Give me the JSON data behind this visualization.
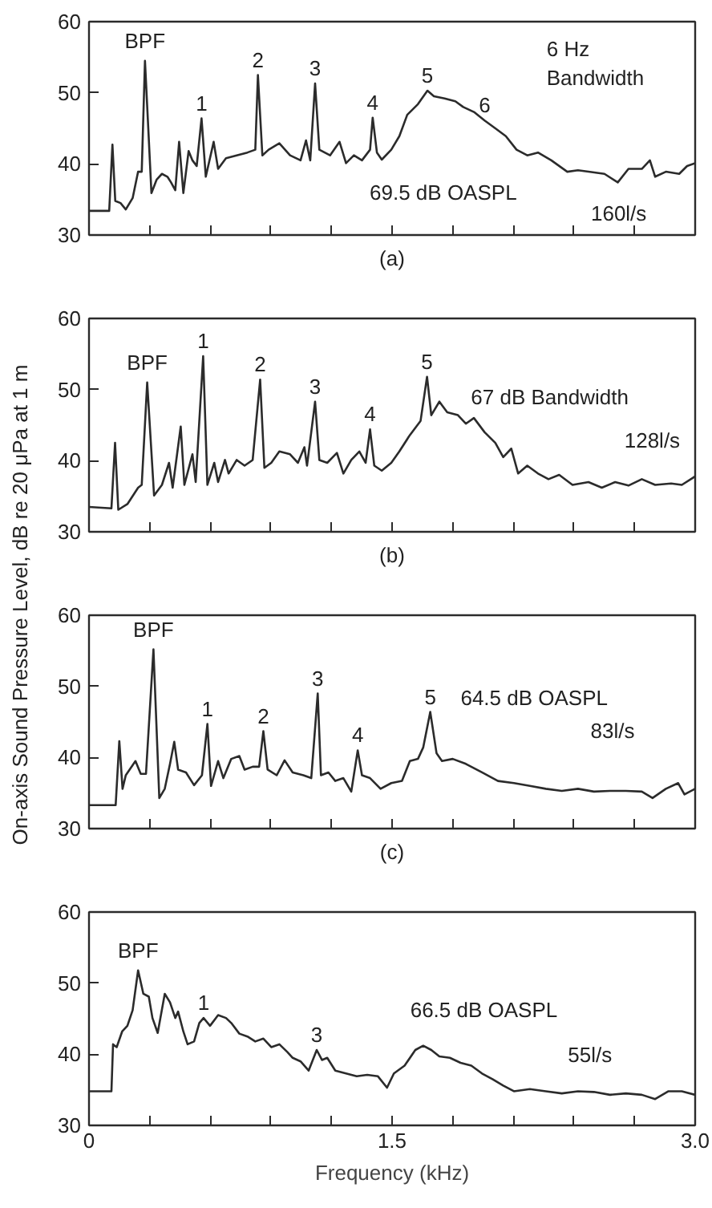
{
  "chart_data": [
    {
      "type": "line",
      "xlim": [
        0,
        3
      ],
      "ylim": [
        30,
        60
      ],
      "yticks": [
        30,
        40,
        50,
        60
      ],
      "tick_labels": "y",
      "grid": false,
      "color": "#2b2b2b",
      "xticks": [
        {
          "value": 0,
          "label": null
        },
        {
          "value": 0.3,
          "label": null
        },
        {
          "value": 0.6,
          "label": null
        },
        {
          "value": 0.9,
          "label": null
        },
        {
          "value": 1.2,
          "label": null
        },
        {
          "value": 1.5,
          "label": null
        },
        {
          "value": 1.8,
          "label": null
        },
        {
          "value": 2.1,
          "label": null
        },
        {
          "value": 2.4,
          "label": null
        },
        {
          "value": 2.7,
          "label": null
        },
        {
          "value": 3,
          "label": null
        }
      ],
      "x": [
        0,
        0.1,
        0.116,
        0.13,
        0.156,
        0.182,
        0.216,
        0.243,
        0.261,
        0.277,
        0.309,
        0.335,
        0.361,
        0.388,
        0.406,
        0.427,
        0.446,
        0.467,
        0.493,
        0.512,
        0.533,
        0.557,
        0.578,
        0.617,
        0.639,
        0.678,
        0.731,
        0.784,
        0.823,
        0.836,
        0.858,
        0.889,
        0.942,
        0.995,
        1.047,
        1.074,
        1.095,
        1.119,
        1.14,
        1.193,
        1.24,
        1.272,
        1.311,
        1.351,
        1.391,
        1.404,
        1.425,
        1.449,
        1.496,
        1.536,
        1.575,
        1.628,
        1.675,
        1.707,
        1.76,
        1.813,
        1.852,
        1.905,
        1.958,
        2.011,
        2.063,
        2.116,
        2.169,
        2.222,
        2.288,
        2.367,
        2.42,
        2.472,
        2.551,
        2.617,
        2.67,
        2.736,
        2.776,
        2.802,
        2.855,
        2.921,
        2.96,
        3.0
      ],
      "values": [
        33.4,
        33.4,
        42.7,
        34.8,
        34.5,
        33.6,
        35.2,
        38.9,
        38.9,
        54.5,
        35.9,
        37.8,
        38.6,
        38.2,
        37.4,
        36.3,
        43.1,
        35.9,
        41.8,
        40.5,
        39.7,
        46.4,
        38.2,
        43.1,
        39.3,
        40.8,
        41.2,
        41.6,
        42.0,
        52.5,
        41.2,
        42.0,
        42.9,
        41.2,
        40.5,
        43.3,
        40.5,
        51.3,
        42.0,
        41.2,
        43.1,
        40.1,
        41.2,
        40.5,
        42.0,
        46.5,
        41.6,
        40.6,
        42.0,
        43.9,
        46.9,
        48.4,
        50.3,
        49.5,
        49.2,
        48.8,
        48.0,
        47.3,
        46.1,
        45.0,
        43.9,
        42.0,
        41.2,
        41.6,
        40.5,
        38.9,
        39.1,
        38.9,
        38.6,
        37.4,
        39.3,
        39.3,
        40.5,
        38.2,
        38.9,
        38.6,
        39.7,
        40.1
      ],
      "annotations": [
        {
          "text": "BPF",
          "x": 0.277,
          "y": 54.5
        },
        {
          "text": "1",
          "x": 0.557,
          "y": 46.4
        },
        {
          "text": "2",
          "x": 0.836,
          "y": 52.5
        },
        {
          "text": "3",
          "x": 1.119,
          "y": 51.3
        },
        {
          "text": "4",
          "x": 1.404,
          "y": 46.5
        },
        {
          "text": "5",
          "x": 1.675,
          "y": 50.3
        },
        {
          "text": "6",
          "x": 1.958,
          "y": 46.1
        },
        "6 Hz\nBandwidth",
        "69.5 dB OASPL",
        "160l/s",
        "(a)"
      ]
    },
    {
      "type": "line",
      "xlim": [
        0,
        3
      ],
      "ylim": [
        30,
        60
      ],
      "yticks": [
        30,
        40,
        50,
        60
      ],
      "tick_labels": "y",
      "grid": false,
      "color": "#2b2b2b",
      "ylabel": "On-axis Sound Pressure Level, dB re 20 μPa at 1 m",
      "xticks": [
        {
          "value": 0,
          "label": null
        },
        {
          "value": 0.3,
          "label": null
        },
        {
          "value": 0.6,
          "label": null
        },
        {
          "value": 0.9,
          "label": null
        },
        {
          "value": 1.2,
          "label": null
        },
        {
          "value": 1.5,
          "label": null
        },
        {
          "value": 1.8,
          "label": null
        },
        {
          "value": 2.1,
          "label": null
        },
        {
          "value": 2.4,
          "label": null
        },
        {
          "value": 2.7,
          "label": null
        },
        {
          "value": 3,
          "label": null
        }
      ],
      "x": [
        0,
        0.111,
        0.129,
        0.145,
        0.19,
        0.243,
        0.261,
        0.288,
        0.322,
        0.361,
        0.396,
        0.414,
        0.454,
        0.472,
        0.512,
        0.528,
        0.565,
        0.586,
        0.62,
        0.639,
        0.673,
        0.691,
        0.731,
        0.77,
        0.81,
        0.847,
        0.868,
        0.902,
        0.942,
        0.995,
        1.034,
        1.066,
        1.079,
        1.119,
        1.14,
        1.179,
        1.227,
        1.259,
        1.298,
        1.338,
        1.369,
        1.391,
        1.412,
        1.449,
        1.496,
        1.536,
        1.588,
        1.641,
        1.673,
        1.694,
        1.734,
        1.773,
        1.826,
        1.865,
        1.905,
        1.958,
        2.011,
        2.05,
        2.09,
        2.124,
        2.169,
        2.222,
        2.274,
        2.327,
        2.393,
        2.472,
        2.538,
        2.604,
        2.67,
        2.736,
        2.802,
        2.881,
        2.934,
        3.0
      ],
      "values": [
        33.5,
        33.3,
        42.5,
        33.1,
        33.9,
        36.2,
        36.6,
        51.0,
        35.1,
        36.6,
        39.7,
        36.2,
        44.8,
        36.6,
        40.9,
        37.0,
        54.7,
        36.6,
        39.7,
        37.0,
        40.1,
        38.2,
        40.1,
        39.3,
        40.1,
        51.4,
        39.0,
        39.7,
        41.3,
        40.9,
        39.7,
        41.9,
        39.3,
        48.3,
        40.1,
        39.7,
        41.1,
        38.2,
        40.1,
        41.3,
        39.7,
        44.4,
        39.3,
        38.6,
        39.7,
        41.3,
        43.6,
        45.6,
        51.8,
        46.4,
        48.3,
        46.8,
        46.4,
        45.2,
        46.0,
        44.0,
        42.5,
        40.5,
        41.7,
        38.2,
        39.3,
        38.2,
        37.4,
        38.0,
        36.6,
        37.0,
        36.2,
        37.0,
        36.5,
        37.4,
        36.6,
        36.8,
        36.6,
        37.8
      ],
      "annotations": [
        {
          "text": "BPF",
          "x": 0.288,
          "y": 51.0
        },
        {
          "text": "1",
          "x": 0.565,
          "y": 54.7
        },
        {
          "text": "2",
          "x": 0.847,
          "y": 51.4
        },
        {
          "text": "3",
          "x": 1.119,
          "y": 48.3
        },
        {
          "text": "4",
          "x": 1.391,
          "y": 44.4
        },
        {
          "text": "5",
          "x": 1.673,
          "y": 51.8
        },
        "67 dB Bandwidth",
        "128l/s",
        "(b)"
      ]
    },
    {
      "type": "line",
      "xlim": [
        0,
        3
      ],
      "ylim": [
        30,
        60
      ],
      "yticks": [
        30,
        40,
        50,
        60
      ],
      "tick_labels": "y",
      "grid": false,
      "color": "#2b2b2b",
      "xticks": [
        {
          "value": 0,
          "label": null
        },
        {
          "value": 0.3,
          "label": null
        },
        {
          "value": 0.6,
          "label": null
        },
        {
          "value": 0.9,
          "label": null
        },
        {
          "value": 1.2,
          "label": null
        },
        {
          "value": 1.5,
          "label": null
        },
        {
          "value": 1.8,
          "label": null
        },
        {
          "value": 2.1,
          "label": null
        },
        {
          "value": 2.4,
          "label": null
        },
        {
          "value": 2.7,
          "label": null
        },
        {
          "value": 3,
          "label": null
        }
      ],
      "x": [
        0,
        0.132,
        0.15,
        0.166,
        0.182,
        0.23,
        0.256,
        0.282,
        0.319,
        0.348,
        0.375,
        0.401,
        0.422,
        0.441,
        0.48,
        0.52,
        0.559,
        0.586,
        0.604,
        0.639,
        0.665,
        0.704,
        0.744,
        0.77,
        0.81,
        0.842,
        0.863,
        0.884,
        0.929,
        0.968,
        1.008,
        1.061,
        1.1,
        1.132,
        1.148,
        1.185,
        1.219,
        1.259,
        1.298,
        1.33,
        1.351,
        1.391,
        1.443,
        1.496,
        1.549,
        1.588,
        1.628,
        1.654,
        1.689,
        1.72,
        1.747,
        1.8,
        1.865,
        1.945,
        2.024,
        2.103,
        2.182,
        2.261,
        2.34,
        2.42,
        2.499,
        2.578,
        2.657,
        2.736,
        2.789,
        2.855,
        2.916,
        2.947,
        3.0
      ],
      "values": [
        33.3,
        33.3,
        42.3,
        35.6,
        37.5,
        39.5,
        37.7,
        37.7,
        55.2,
        34.3,
        35.6,
        39.1,
        42.2,
        38.3,
        37.9,
        36.1,
        37.5,
        44.7,
        36.0,
        39.5,
        37.1,
        39.8,
        40.2,
        38.3,
        38.7,
        38.7,
        43.7,
        38.3,
        37.5,
        39.6,
        37.9,
        37.5,
        37.1,
        49.0,
        37.5,
        37.9,
        36.7,
        37.1,
        35.2,
        41.0,
        37.5,
        37.1,
        35.6,
        36.4,
        36.7,
        39.5,
        39.8,
        41.4,
        46.4,
        40.6,
        39.5,
        39.8,
        39.1,
        37.9,
        36.7,
        36.4,
        36.0,
        35.6,
        35.3,
        35.6,
        35.2,
        35.3,
        35.3,
        35.2,
        34.3,
        35.6,
        36.4,
        34.8,
        35.6
      ],
      "annotations": [
        {
          "text": "BPF",
          "x": 0.319,
          "y": 55.2
        },
        {
          "text": "1",
          "x": 0.586,
          "y": 44.7
        },
        {
          "text": "2",
          "x": 0.863,
          "y": 43.7
        },
        {
          "text": "3",
          "x": 1.132,
          "y": 49.0
        },
        {
          "text": "4",
          "x": 1.33,
          "y": 41.0
        },
        {
          "text": "5",
          "x": 1.689,
          "y": 46.4
        },
        "64.5 dB OASPL",
        "83l/s",
        "(c)"
      ]
    },
    {
      "type": "line",
      "xlim": [
        0,
        3
      ],
      "ylim": [
        30,
        60
      ],
      "yticks": [
        30,
        40,
        50,
        60
      ],
      "grid": false,
      "color": "#2b2b2b",
      "xlabel": "Frequency (kHz)",
      "xticks": [
        {
          "value": 0,
          "label": "0"
        },
        {
          "value": 0.3,
          "label": null
        },
        {
          "value": 0.6,
          "label": null
        },
        {
          "value": 0.9,
          "label": null
        },
        {
          "value": 1.2,
          "label": null
        },
        {
          "value": 1.5,
          "label": "1.5"
        },
        {
          "value": 1.8,
          "label": null
        },
        {
          "value": 2.1,
          "label": null
        },
        {
          "value": 2.4,
          "label": null
        },
        {
          "value": 2.7,
          "label": null
        },
        {
          "value": 3,
          "label": "3.0"
        }
      ],
      "x": [
        0,
        0.111,
        0.119,
        0.137,
        0.164,
        0.19,
        0.216,
        0.243,
        0.269,
        0.296,
        0.314,
        0.34,
        0.375,
        0.401,
        0.427,
        0.441,
        0.467,
        0.488,
        0.52,
        0.546,
        0.567,
        0.599,
        0.639,
        0.678,
        0.704,
        0.744,
        0.784,
        0.823,
        0.863,
        0.902,
        0.942,
        0.982,
        1.008,
        1.047,
        1.087,
        1.127,
        1.153,
        1.179,
        1.219,
        1.272,
        1.325,
        1.377,
        1.43,
        1.475,
        1.509,
        1.562,
        1.615,
        1.654,
        1.694,
        1.734,
        1.786,
        1.839,
        1.892,
        1.945,
        1.997,
        2.05,
        2.103,
        2.182,
        2.261,
        2.34,
        2.42,
        2.499,
        2.578,
        2.657,
        2.736,
        2.802,
        2.868,
        2.934,
        3.0
      ],
      "values": [
        34.8,
        34.8,
        41.4,
        41.0,
        43.2,
        44.0,
        46.2,
        51.8,
        48.5,
        48.1,
        45.1,
        43.0,
        48.5,
        47.3,
        45.1,
        46.0,
        43.2,
        41.4,
        41.8,
        44.4,
        45.1,
        44.0,
        45.5,
        45.1,
        44.4,
        42.9,
        42.5,
        41.8,
        42.2,
        41.0,
        41.4,
        40.3,
        39.5,
        39.0,
        37.7,
        40.6,
        39.2,
        39.5,
        37.7,
        37.3,
        36.9,
        37.1,
        36.9,
        35.3,
        37.3,
        38.4,
        40.6,
        41.2,
        40.6,
        39.7,
        39.5,
        38.8,
        38.4,
        37.3,
        36.5,
        35.6,
        34.8,
        35.1,
        34.8,
        34.5,
        34.8,
        34.7,
        34.3,
        34.5,
        34.3,
        33.7,
        34.8,
        34.8,
        34.3
      ],
      "annotations": [
        {
          "text": "BPF",
          "x": 0.243,
          "y": 51.8
        },
        {
          "text": "1",
          "x": 0.567,
          "y": 45.1
        },
        {
          "text": "3",
          "x": 1.127,
          "y": 40.6
        },
        "66.5 dB OASPL",
        "55l/s"
      ]
    }
  ]
}
